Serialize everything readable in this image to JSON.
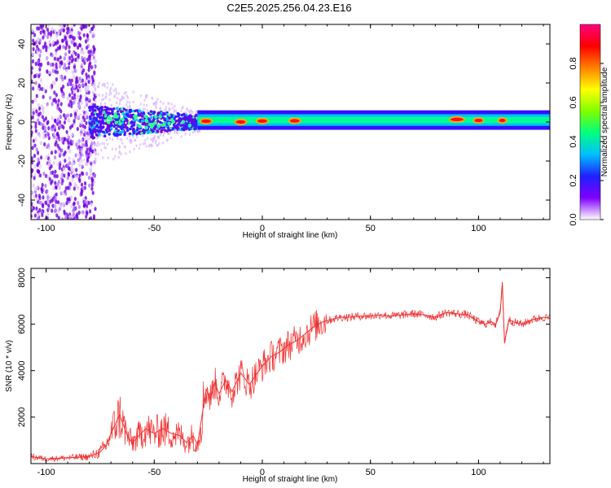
{
  "title": "C2E5.2025.256.04.23.E16",
  "chart_data": [
    {
      "type": "heatmap",
      "xlabel": "Height of straight line (km)",
      "ylabel": "Frequency (Hz)",
      "xlim": [
        -107,
        133
      ],
      "ylim": [
        -50,
        50
      ],
      "x_ticks": [
        -100,
        -50,
        0,
        50,
        100
      ],
      "y_ticks": [
        -40,
        -20,
        0,
        20,
        40
      ],
      "colorbar": {
        "label": "Normalized spectral amplitude",
        "range": [
          0.0,
          1.0
        ],
        "ticks": [
          "0.0",
          "0.2",
          "0.4",
          "0.6",
          "0.8"
        ],
        "colormap": [
          "#ffffff",
          "#8000ff",
          "#2020ff",
          "#00c0ff",
          "#00ff80",
          "#80ff00",
          "#ffff00",
          "#ff8000",
          "#ff0000",
          "#ff0080"
        ]
      },
      "features": [
        {
          "description_x_range": [
            -107,
            -80
          ],
          "frequency_range": [
            -50,
            50
          ],
          "amplitude": 0.05
        },
        {
          "description_x_range": [
            -80,
            -30
          ],
          "frequency_range": [
            -5,
            5
          ],
          "amplitude": 0.4
        },
        {
          "description_x_range": [
            -30,
            133
          ],
          "frequency_center": 0.5,
          "amplitude": 0.5
        },
        {
          "description_x_range": [
            85,
            95
          ],
          "frequency_center": 1,
          "amplitude": 0.95
        }
      ]
    },
    {
      "type": "line",
      "xlabel": "Height of straight line (km)",
      "ylabel": "SNR (10 * v/v)",
      "xlim": [
        -107,
        133
      ],
      "ylim": [
        0,
        8400
      ],
      "x_ticks": [
        -100,
        -50,
        0,
        50,
        100
      ],
      "y_ticks": [
        2000,
        4000,
        6000,
        8000
      ],
      "color": "#f03030",
      "series": [
        {
          "x": [
            -107,
            -100,
            -90,
            -80,
            -75,
            -72,
            -70,
            -68,
            -66,
            -64,
            -62,
            -60,
            -57,
            -54,
            -50,
            -46,
            -42,
            -38,
            -35,
            -32,
            -30,
            -28,
            -26,
            -24,
            -22,
            -20,
            -17,
            -14,
            -10,
            -6,
            -3,
            0,
            4,
            8,
            12,
            16,
            20,
            24,
            28,
            32,
            36,
            40,
            45,
            50,
            55,
            60,
            65,
            70,
            75,
            80,
            85,
            90,
            95,
            100,
            103,
            106,
            108,
            110,
            111,
            112,
            114,
            116,
            120,
            125,
            130,
            133
          ],
          "y": [
            300,
            200,
            250,
            300,
            500,
            800,
            1300,
            1700,
            2100,
            1600,
            1100,
            900,
            1200,
            1500,
            1300,
            1500,
            1300,
            1200,
            900,
            1200,
            800,
            2000,
            3200,
            2800,
            3500,
            3000,
            3600,
            3100,
            3900,
            3400,
            3800,
            4200,
            4600,
            4800,
            5100,
            5300,
            5600,
            5900,
            6100,
            6200,
            6300,
            6300,
            6350,
            6350,
            6400,
            6350,
            6400,
            6450,
            6400,
            6300,
            6500,
            6450,
            6400,
            6100,
            6000,
            6100,
            6000,
            6500,
            7800,
            5200,
            6200,
            6100,
            6000,
            6200,
            6300,
            6250
          ]
        }
      ]
    }
  ]
}
